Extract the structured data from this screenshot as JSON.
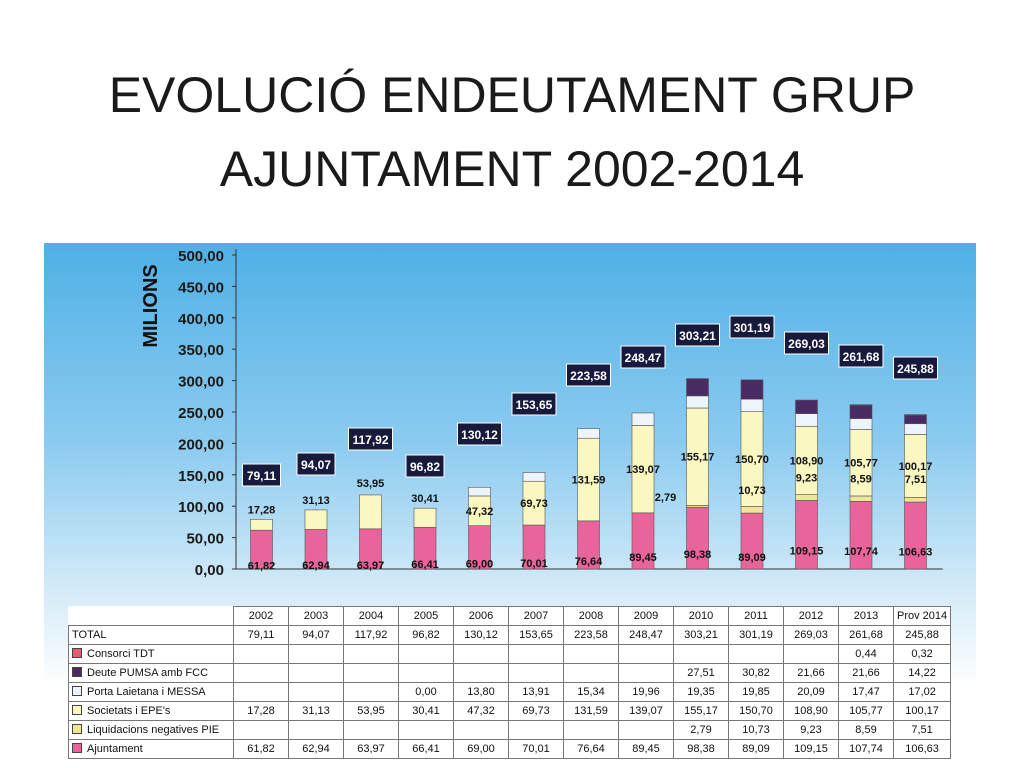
{
  "title": {
    "line1": "EVOLUCIÓ ENDEUTAMENT GRUP",
    "line2": "AJUNTAMENT 2002-2014"
  },
  "chart_data": {
    "type": "bar",
    "stacked": true,
    "ylabel": "MILIONS",
    "ylim": [
      0,
      500
    ],
    "yticks": [
      "0,00",
      "50,00",
      "100,00",
      "150,00",
      "200,00",
      "250,00",
      "300,00",
      "350,00",
      "400,00",
      "450,00",
      "500,00"
    ],
    "categories": [
      "2002",
      "2003",
      "2004",
      "2005",
      "2006",
      "2007",
      "2008",
      "2009",
      "2010",
      "2011",
      "2012",
      "2013",
      "Prov 2014"
    ],
    "totals": [
      79.11,
      94.07,
      117.92,
      96.82,
      130.12,
      153.65,
      223.58,
      248.47,
      303.21,
      301.19,
      269.03,
      261.68,
      245.88
    ],
    "total_labels": [
      "79,11",
      "94,07",
      "117,92",
      "96,82",
      "130,12",
      "153,65",
      "223,58",
      "248,47",
      "303,21",
      "301,19",
      "269,03",
      "261,68",
      "245,88"
    ],
    "total_row_label": "TOTAL",
    "series": [
      {
        "name": "Ajuntament",
        "color": "#e8649a",
        "values": [
          61.82,
          62.94,
          63.97,
          66.41,
          69.0,
          70.01,
          76.64,
          89.45,
          98.38,
          89.09,
          109.15,
          107.74,
          106.63
        ],
        "labels": [
          "61,82",
          "62,94",
          "63,97",
          "66,41",
          "69,00",
          "70,01",
          "76,64",
          "89,45",
          "98,38",
          "89,09",
          "109,15",
          "107,74",
          "106,63"
        ]
      },
      {
        "name": "Liquidacions negatives PIE",
        "color": "#f2e39a",
        "values": [
          0,
          0,
          0,
          0,
          0,
          0,
          0,
          0,
          2.79,
          10.73,
          9.23,
          8.59,
          7.51
        ],
        "labels": [
          "",
          "",
          "",
          "",
          "",
          "",
          "",
          "",
          "2,79",
          "10,73",
          "9,23",
          "8,59",
          "7,51"
        ]
      },
      {
        "name": "Societats i EPE's",
        "color": "#fbf7c0",
        "values": [
          17.28,
          31.13,
          53.95,
          30.41,
          47.32,
          69.73,
          131.59,
          139.07,
          155.17,
          150.7,
          108.9,
          105.77,
          100.17
        ],
        "labels": [
          "17,28",
          "31,13",
          "53,95",
          "30,41",
          "47,32",
          "69,73",
          "131,59",
          "139,07",
          "155,17",
          "150,70",
          "108,90",
          "105,77",
          "100,17"
        ]
      },
      {
        "name": "Porta Laietana i MESSA",
        "color": "#eef4fb",
        "values": [
          0,
          0,
          0,
          0.0,
          13.8,
          13.91,
          15.34,
          19.96,
          19.35,
          19.85,
          20.09,
          17.47,
          17.02
        ],
        "labels": [
          "",
          "",
          "",
          "0,00",
          "13,80",
          "13,91",
          "15,34",
          "19,96",
          "19,35",
          "19,85",
          "20,09",
          "17,47",
          "17,02"
        ]
      },
      {
        "name": "Deute PUMSA amb FCC",
        "color": "#4a2a63",
        "values": [
          0,
          0,
          0,
          0,
          0,
          0,
          0,
          0,
          27.51,
          30.82,
          21.66,
          21.66,
          14.22
        ],
        "labels": [
          "",
          "",
          "",
          "",
          "",
          "",
          "",
          "",
          "27,51",
          "30,82",
          "21,66",
          "21,66",
          "14,22"
        ]
      },
      {
        "name": "Consorci TDT",
        "color": "#e06070",
        "values": [
          0,
          0,
          0,
          0,
          0,
          0,
          0,
          0,
          0,
          0,
          0,
          0.44,
          0.32
        ],
        "labels": [
          "",
          "",
          "",
          "",
          "",
          "",
          "",
          "",
          "",
          "",
          "",
          "0,44",
          "0,32"
        ]
      }
    ],
    "legend": "table-below"
  }
}
